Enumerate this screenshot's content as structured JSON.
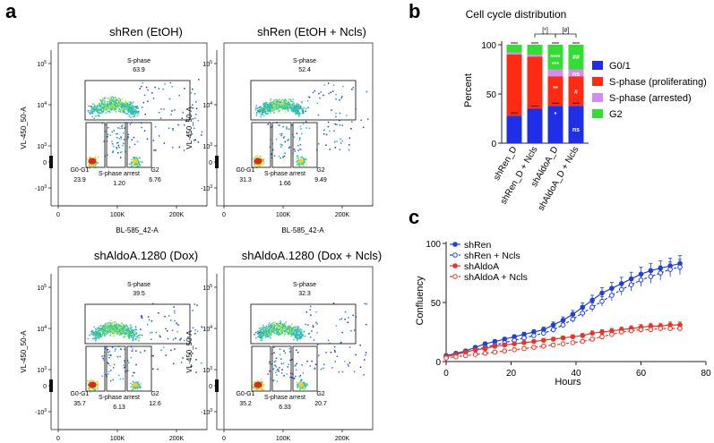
{
  "figure": {
    "panel_letters": [
      "a",
      "b",
      "c"
    ]
  },
  "colors": {
    "g01": "#1f2fe8",
    "s_prolif": "#ff2a12",
    "s_arrest": "#d48cf0",
    "g2": "#33dd33",
    "shren": "#1f3fe0",
    "shaldoa": "#ee3322"
  },
  "flow": {
    "panels": [
      {
        "title": "shRen (EtOH)",
        "s_phase_label": "S-phase",
        "s_phase_value": "63.9",
        "g0g1_label": "G0-G1",
        "g0g1_value": "23.9",
        "arrest_label": "S-phase arrest",
        "arrest_value": "1.20",
        "g2_label": "G2",
        "g2_value": "6.76",
        "xlabel": "BL-585_42-A",
        "ylabel": "VL-450_50-A"
      },
      {
        "title": "shRen (EtOH + Ncls)",
        "s_phase_label": "S-phase",
        "s_phase_value": "52.4",
        "g0g1_label": "G0-G1",
        "g0g1_value": "31.3",
        "arrest_label": "S-phase arrest",
        "arrest_value": "1.66",
        "g2_label": "G2",
        "g2_value": "9.49",
        "xlabel": "BL-585_42-A",
        "ylabel": "VL-450_50-A"
      },
      {
        "title": "shAldoA.1280 (Dox)",
        "s_phase_label": "S-phase",
        "s_phase_value": "39.5",
        "g0g1_label": "G0-G1",
        "g0g1_value": "35.7",
        "arrest_label": "S-phase arrest",
        "arrest_value": "6.13",
        "g2_label": "G2",
        "g2_value": "12.6",
        "xlabel": "BL-585_42-A",
        "ylabel": "VL-450_50-A"
      },
      {
        "title": "shAldoA.1280 (Dox + Ncls)",
        "s_phase_label": "S-phase",
        "s_phase_value": "32.3",
        "g0g1_label": "G0-G1",
        "g0g1_value": "35.2",
        "arrest_label": "S-phase arrest",
        "arrest_value": "6.33",
        "g2_label": "G2",
        "g2_value": "20.7",
        "xlabel": "BL-585_42-A",
        "ylabel": "VL-450_50-A"
      }
    ],
    "x_ticks": [
      "0",
      "100K",
      "200K"
    ],
    "y_ticks": [
      "10^5",
      "10^4",
      "10^3",
      "0",
      "-10^3"
    ]
  },
  "chart_data": [
    {
      "type": "bar",
      "stacked": true,
      "title": "Cell cycle distribution",
      "xlabel": "",
      "ylabel": "Percent",
      "ylim": [
        0,
        100
      ],
      "yticks": [
        0,
        50,
        100
      ],
      "categories": [
        "shRen_D",
        "shRen_D + Ncls",
        "shAldoA_D",
        "shAldoA_D + Ncls"
      ],
      "series": [
        {
          "name": "G0/1",
          "values": [
            28,
            35,
            38,
            38
          ]
        },
        {
          "name": "S-phase (proliferating)",
          "values": [
            62,
            53,
            30,
            30
          ]
        },
        {
          "name": "S-phase (arrested)",
          "values": [
            2,
            2,
            7,
            7
          ]
        },
        {
          "name": "G2",
          "values": [
            8,
            10,
            25,
            25
          ]
        }
      ],
      "annotations": [
        "[*]",
        "[#]",
        "****",
        "***",
        "**",
        "*",
        "##",
        "ns",
        "#",
        "ns"
      ]
    },
    {
      "type": "line",
      "xlabel": "Hours",
      "ylabel": "Confluency",
      "xlim": [
        0,
        80
      ],
      "ylim": [
        0,
        100
      ],
      "xticks": [
        0,
        20,
        40,
        60,
        80
      ],
      "yticks": [
        0,
        50,
        100
      ],
      "x": [
        0,
        3,
        6,
        9,
        12,
        15,
        18,
        21,
        24,
        27,
        30,
        33,
        36,
        39,
        42,
        45,
        48,
        51,
        54,
        57,
        60,
        63,
        66,
        69,
        72
      ],
      "series": [
        {
          "name": "shRen",
          "values": [
            5,
            7,
            9,
            12,
            15,
            17,
            19,
            21,
            23,
            25,
            27,
            31,
            35,
            40,
            46,
            52,
            58,
            62,
            66,
            70,
            74,
            77,
            79,
            81,
            83
          ]
        },
        {
          "name": "shRen + Ncls",
          "values": [
            4,
            6,
            8,
            10,
            12,
            14,
            16,
            18,
            20,
            22,
            24,
            27,
            31,
            36,
            41,
            46,
            51,
            56,
            61,
            65,
            69,
            72,
            75,
            78,
            80
          ]
        },
        {
          "name": "shAldoA",
          "values": [
            4,
            6,
            8,
            10,
            11,
            13,
            14,
            15,
            16,
            17,
            18,
            19,
            20,
            21,
            22,
            24,
            25,
            26,
            27,
            28,
            29,
            30,
            30,
            31,
            31
          ]
        },
        {
          "name": "shAldoA + Ncls",
          "values": [
            3,
            4,
            5,
            6,
            7,
            8,
            9,
            10,
            11,
            12,
            13,
            14,
            15,
            16,
            17,
            19,
            21,
            23,
            25,
            26,
            27,
            27,
            28,
            28,
            28
          ]
        }
      ]
    }
  ]
}
